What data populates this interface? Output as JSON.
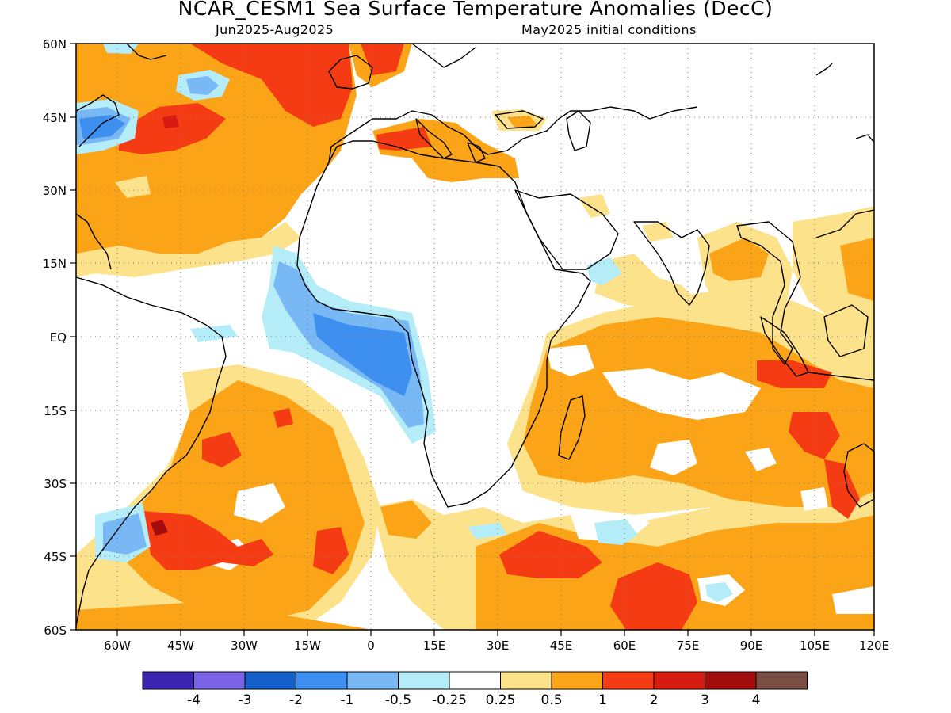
{
  "title": "NCAR_CESM1 Sea Surface Temperature Anomalies (DecC)",
  "subtitle_left": "Jun2025-Aug2025",
  "subtitle_right": "May2025 initial conditions",
  "lat_ticks": [
    "60N",
    "45N",
    "30N",
    "15N",
    "EQ",
    "15S",
    "30S",
    "45S",
    "60S"
  ],
  "lon_ticks": [
    "60W",
    "45W",
    "30W",
    "15W",
    "0",
    "15E",
    "30E",
    "45E",
    "60E",
    "75E",
    "90E",
    "105E",
    "120E"
  ],
  "colorbar": {
    "colors": [
      "#3a24b0",
      "#7b63e6",
      "#1560c8",
      "#3d90f0",
      "#78b8f5",
      "#b4ecf8",
      "#ffffff",
      "#fde28c",
      "#fba417",
      "#f53b13",
      "#d81b10",
      "#a20c0c",
      "#7a4e42"
    ],
    "labels": [
      "-4",
      "-3",
      "-2",
      "-1",
      "-0.5",
      "-0.25",
      "0.25",
      "0.5",
      "1",
      "2",
      "3",
      "4"
    ]
  }
}
